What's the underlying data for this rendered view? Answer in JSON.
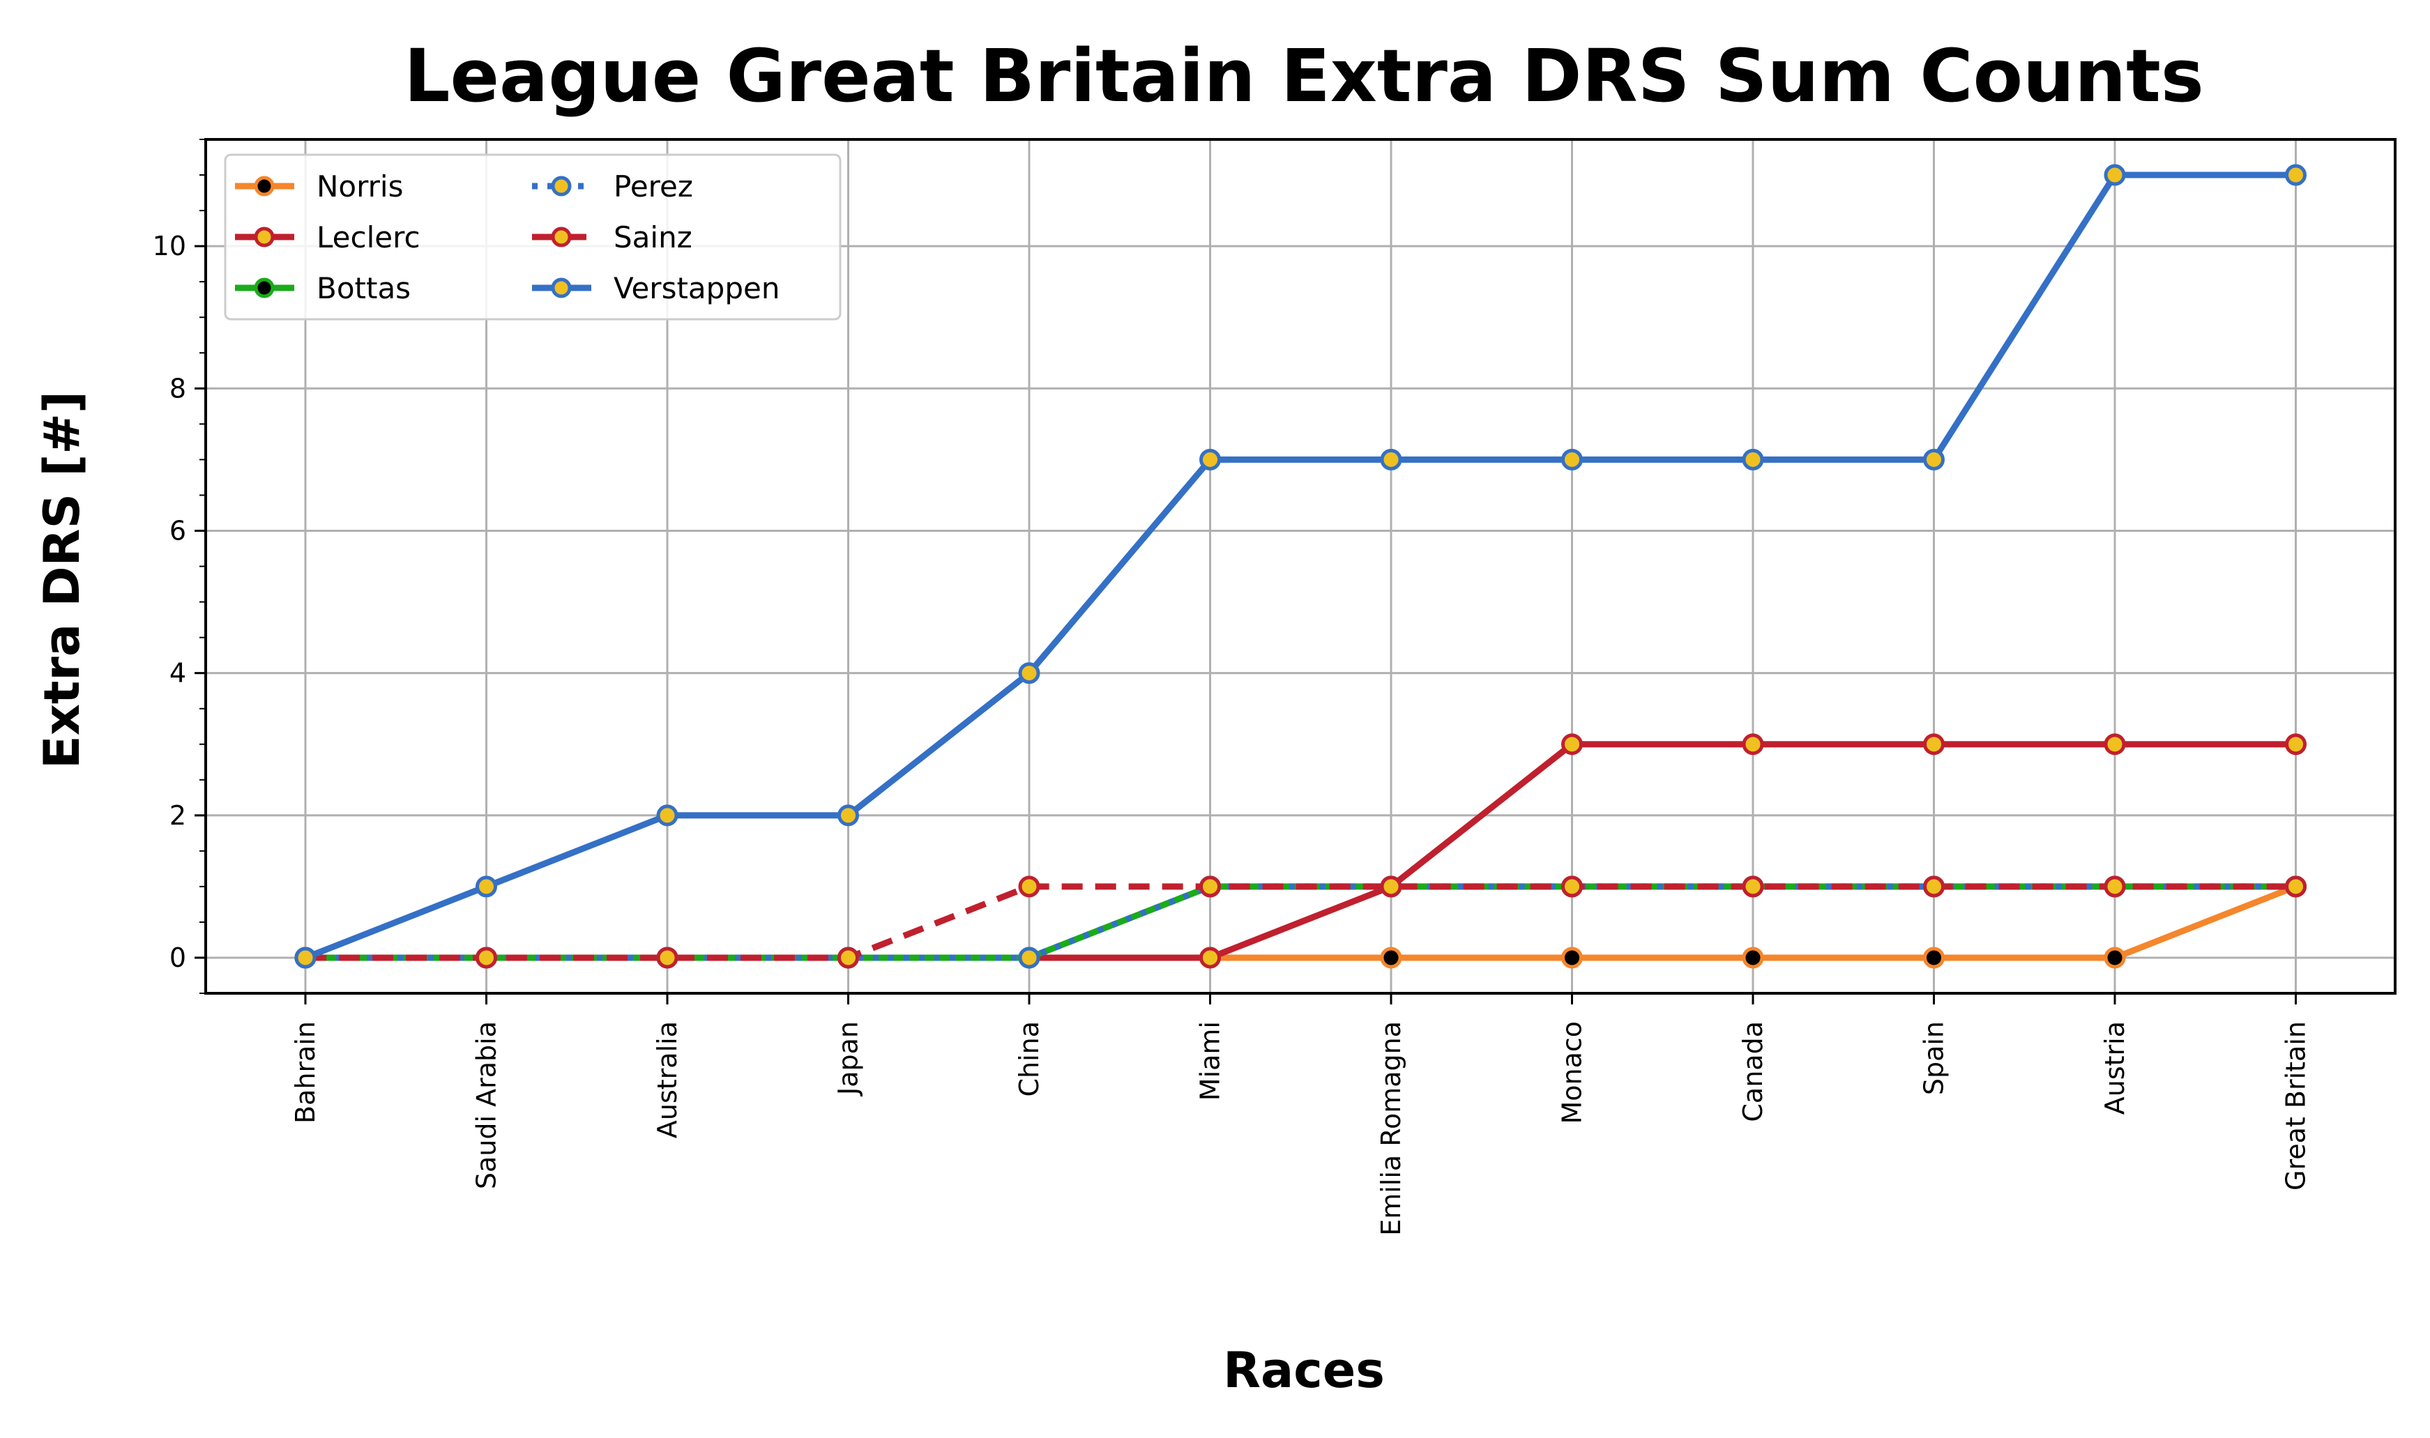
{
  "chart_data": {
    "type": "line",
    "title": "League Great Britain Extra DRS Sum Counts",
    "xlabel": "Races",
    "ylabel": "Extra DRS [#]",
    "categories": [
      "Bahrain",
      "Saudi Arabia",
      "Australia",
      "Japan",
      "China",
      "Miami",
      "Emilia Romagna",
      "Monaco",
      "Canada",
      "Spain",
      "Austria",
      "Great Britain"
    ],
    "ylim": [
      -0.5,
      11.5
    ],
    "yticks": [
      0,
      2,
      4,
      6,
      8,
      10
    ],
    "grid": true,
    "legend_position": "top-left",
    "legend_columns": 2,
    "series": [
      {
        "name": "Norris",
        "values": [
          0,
          0,
          0,
          0,
          0,
          0,
          0,
          0,
          0,
          0,
          0,
          1
        ],
        "color": "#f5862b",
        "dash": "solid",
        "marker_fill": "#000000",
        "marker_edge": "#f5862b"
      },
      {
        "name": "Leclerc",
        "values": [
          0,
          0,
          0,
          0,
          0,
          0,
          1,
          3,
          3,
          3,
          3,
          3
        ],
        "color": "#c0202e",
        "dash": "solid",
        "marker_fill": "#f0c020",
        "marker_edge": "#c0202e"
      },
      {
        "name": "Bottas",
        "values": [
          0,
          0,
          0,
          0,
          0,
          1,
          1,
          1,
          1,
          1,
          1,
          1
        ],
        "color": "#1aab1a",
        "dash": "solid",
        "marker_fill": "#000000",
        "marker_edge": "#1aab1a"
      },
      {
        "name": "Perez",
        "values": [
          0,
          0,
          0,
          0,
          0,
          1,
          1,
          1,
          1,
          1,
          1,
          1
        ],
        "color": "#3470c6",
        "dash": "dotted",
        "marker_fill": "#f0c020",
        "marker_edge": "#3470c6"
      },
      {
        "name": "Sainz",
        "values": [
          0,
          0,
          0,
          0,
          1,
          1,
          1,
          1,
          1,
          1,
          1,
          1
        ],
        "color": "#c0202e",
        "dash": "dashed",
        "marker_fill": "#f0c020",
        "marker_edge": "#c0202e"
      },
      {
        "name": "Verstappen",
        "values": [
          0,
          1,
          2,
          2,
          4,
          7,
          7,
          7,
          7,
          7,
          11,
          11
        ],
        "color": "#3470c6",
        "dash": "solid",
        "marker_fill": "#f0c020",
        "marker_edge": "#3470c6"
      }
    ]
  }
}
